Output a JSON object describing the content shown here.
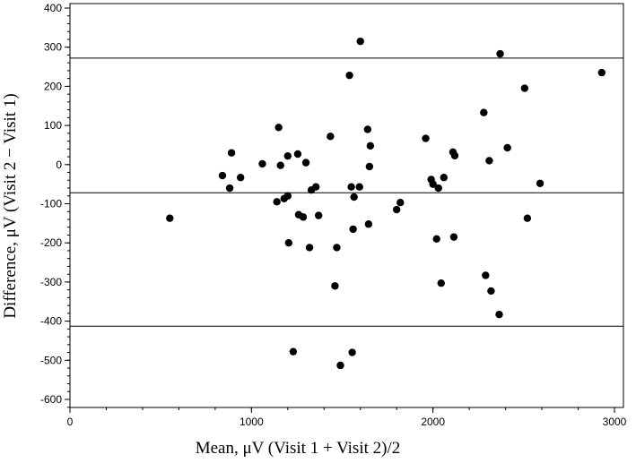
{
  "chart_data": {
    "type": "scatter",
    "xlabel": "Mean, μV (Visit 1 + Visit 2)/2",
    "ylabel": "Difference, μV (Visit 2 − Visit 1)",
    "xlim": [
      0,
      3000
    ],
    "ylim": [
      -620,
      410
    ],
    "x_ticks": [
      0,
      1000,
      2000,
      3000
    ],
    "y_ticks": [
      400,
      300,
      200,
      100,
      0,
      -100,
      -200,
      -300,
      -400,
      -500,
      -600
    ],
    "x_tick_labels": [
      "0",
      "1000",
      "2000",
      "3000"
    ],
    "y_tick_labels": [
      "400",
      "300",
      "200",
      "100",
      "0",
      "-100",
      "-200",
      "-300",
      "-400",
      "-500",
      "-600"
    ],
    "x_minor_step": 200,
    "y_minor_step": 20,
    "grid": false,
    "reference_lines": [
      {
        "y": 272
      },
      {
        "y": -72
      },
      {
        "y": -413
      }
    ],
    "marker_color": "#000000",
    "points": [
      {
        "x": 550,
        "y": -137
      },
      {
        "x": 840,
        "y": -28
      },
      {
        "x": 880,
        "y": -60
      },
      {
        "x": 890,
        "y": 30
      },
      {
        "x": 940,
        "y": -33
      },
      {
        "x": 1060,
        "y": 2
      },
      {
        "x": 1140,
        "y": -95
      },
      {
        "x": 1150,
        "y": 95
      },
      {
        "x": 1160,
        "y": -2
      },
      {
        "x": 1180,
        "y": -87
      },
      {
        "x": 1200,
        "y": -80
      },
      {
        "x": 1200,
        "y": 22
      },
      {
        "x": 1205,
        "y": -200
      },
      {
        "x": 1230,
        "y": -478
      },
      {
        "x": 1255,
        "y": 27
      },
      {
        "x": 1260,
        "y": -128
      },
      {
        "x": 1285,
        "y": -134
      },
      {
        "x": 1300,
        "y": 5
      },
      {
        "x": 1320,
        "y": -212
      },
      {
        "x": 1330,
        "y": -65
      },
      {
        "x": 1355,
        "y": -57
      },
      {
        "x": 1370,
        "y": -130
      },
      {
        "x": 1435,
        "y": 72
      },
      {
        "x": 1460,
        "y": -310
      },
      {
        "x": 1470,
        "y": -212
      },
      {
        "x": 1490,
        "y": -513
      },
      {
        "x": 1540,
        "y": 228
      },
      {
        "x": 1550,
        "y": -57
      },
      {
        "x": 1555,
        "y": -480
      },
      {
        "x": 1560,
        "y": -165
      },
      {
        "x": 1565,
        "y": -83
      },
      {
        "x": 1595,
        "y": -57
      },
      {
        "x": 1600,
        "y": 315
      },
      {
        "x": 1640,
        "y": 90
      },
      {
        "x": 1645,
        "y": -152
      },
      {
        "x": 1650,
        "y": -5
      },
      {
        "x": 1655,
        "y": 48
      },
      {
        "x": 1800,
        "y": -115
      },
      {
        "x": 1820,
        "y": -97
      },
      {
        "x": 1960,
        "y": 67
      },
      {
        "x": 1990,
        "y": -38
      },
      {
        "x": 2000,
        "y": -50
      },
      {
        "x": 2020,
        "y": -190
      },
      {
        "x": 2030,
        "y": -60
      },
      {
        "x": 2045,
        "y": -303
      },
      {
        "x": 2060,
        "y": -33
      },
      {
        "x": 2110,
        "y": 32
      },
      {
        "x": 2115,
        "y": -185
      },
      {
        "x": 2120,
        "y": 23
      },
      {
        "x": 2280,
        "y": 133
      },
      {
        "x": 2290,
        "y": -283
      },
      {
        "x": 2310,
        "y": 10
      },
      {
        "x": 2320,
        "y": -323
      },
      {
        "x": 2365,
        "y": -383
      },
      {
        "x": 2370,
        "y": 283
      },
      {
        "x": 2410,
        "y": 43
      },
      {
        "x": 2505,
        "y": 195
      },
      {
        "x": 2520,
        "y": -137
      },
      {
        "x": 2590,
        "y": -48
      },
      {
        "x": 2930,
        "y": 235
      }
    ]
  }
}
